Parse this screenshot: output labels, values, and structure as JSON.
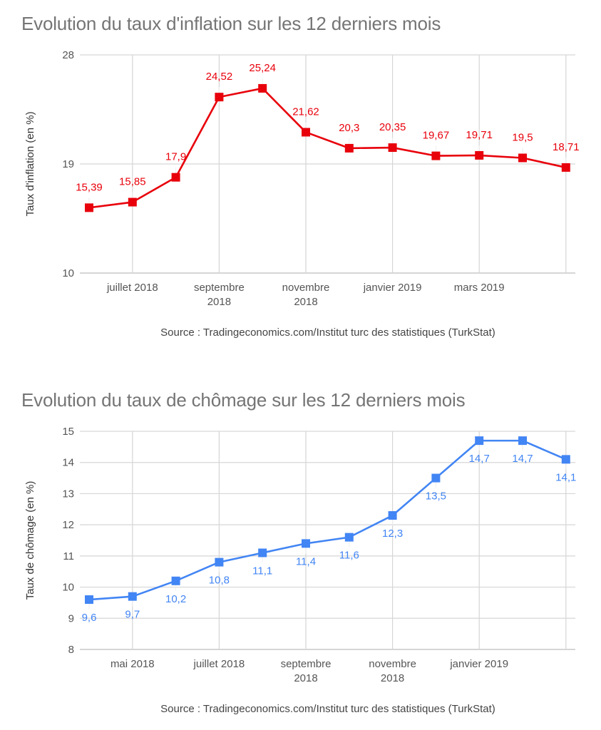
{
  "chart_data": [
    {
      "type": "line",
      "title": "Evolution du taux d'inflation sur les 12 derniers mois",
      "xlabel": "",
      "ylabel": "Taux d'inflation (en %)",
      "ylim": [
        10,
        28
      ],
      "yticks": [
        "10",
        "19",
        "28"
      ],
      "ytick_values": [
        10,
        19,
        28
      ],
      "grid": true,
      "legend": "none",
      "color": "#e8000b",
      "x_tick_labels": [
        {
          "index": 1,
          "lines": [
            "juillet 2018"
          ]
        },
        {
          "index": 3,
          "lines": [
            "septembre",
            "2018"
          ]
        },
        {
          "index": 5,
          "lines": [
            "novembre",
            "2018"
          ]
        },
        {
          "index": 7,
          "lines": [
            "janvier 2019"
          ]
        },
        {
          "index": 9,
          "lines": [
            "mars 2019"
          ]
        }
      ],
      "vgrid_indices": [
        1,
        3,
        5,
        7,
        9,
        11
      ],
      "label_position": "above",
      "series": [
        {
          "name": "Taux d'inflation",
          "values": [
            15.39,
            15.85,
            17.9,
            24.52,
            25.24,
            21.62,
            20.3,
            20.35,
            19.67,
            19.71,
            19.5,
            18.71
          ],
          "labels": [
            "15,39",
            "15,85",
            "17,9",
            "24,52",
            "25,24",
            "21,62",
            "20,3",
            "20,35",
            "19,67",
            "19,71",
            "19,5",
            "18,71"
          ]
        }
      ],
      "source": "Source : Tradingeconomics.com/Institut turc des statistiques (TurkStat)"
    },
    {
      "type": "line",
      "title": "Evolution du taux de chômage sur les 12 derniers mois",
      "xlabel": "",
      "ylabel": "Taux de chômage (en %)",
      "ylim": [
        8,
        15
      ],
      "yticks": [
        "8",
        "9",
        "10",
        "11",
        "12",
        "13",
        "14",
        "15"
      ],
      "ytick_values": [
        8,
        9,
        10,
        11,
        12,
        13,
        14,
        15
      ],
      "grid": true,
      "legend": "none",
      "color": "#4285f4",
      "x_tick_labels": [
        {
          "index": 1,
          "lines": [
            "mai 2018"
          ]
        },
        {
          "index": 3,
          "lines": [
            "juillet 2018"
          ]
        },
        {
          "index": 5,
          "lines": [
            "septembre",
            "2018"
          ]
        },
        {
          "index": 7,
          "lines": [
            "novembre",
            "2018"
          ]
        },
        {
          "index": 9,
          "lines": [
            "janvier 2019"
          ]
        }
      ],
      "vgrid_indices": [
        1,
        3,
        5,
        7,
        9,
        11
      ],
      "label_position": "below",
      "series": [
        {
          "name": "Taux de chômage",
          "values": [
            9.6,
            9.7,
            10.2,
            10.8,
            11.1,
            11.4,
            11.6,
            12.3,
            13.5,
            14.7,
            14.7,
            14.1
          ],
          "labels": [
            "9,6",
            "9,7",
            "10,2",
            "10,8",
            "11,1",
            "11,4",
            "11,6",
            "12,3",
            "13,5",
            "14,7",
            "14,7",
            "14,1"
          ]
        }
      ],
      "source": "Source : Tradingeconomics.com/Institut turc des statistiques (TurkStat)"
    }
  ]
}
